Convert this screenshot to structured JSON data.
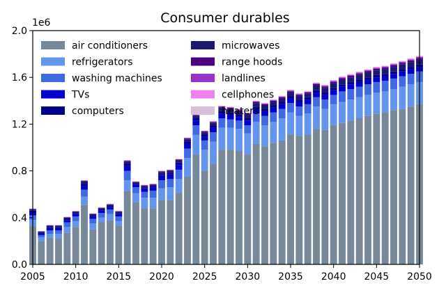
{
  "chart_data": {
    "type": "bar",
    "stacked": true,
    "title": "Consumer durables",
    "xlabel": "",
    "ylabel": "",
    "y_offset_label": "1e6",
    "xlim": [
      2005,
      2050
    ],
    "ylim": [
      0,
      2000000
    ],
    "x_ticks": [
      2005,
      2010,
      2015,
      2020,
      2025,
      2030,
      2035,
      2040,
      2045,
      2050
    ],
    "x_tick_labels": [
      "2005",
      "2010",
      "2015",
      "2020",
      "2025",
      "2030",
      "2035",
      "2040",
      "2045",
      "2050"
    ],
    "y_ticks": [
      0,
      400000,
      800000,
      1200000,
      1600000,
      2000000
    ],
    "y_tick_labels": [
      "0.0",
      "0.4",
      "0.8",
      "1.2",
      "1.6",
      "2.0"
    ],
    "grid": false,
    "legend_position": "top-left",
    "legend_columns": 2,
    "years": [
      2005,
      2006,
      2007,
      2008,
      2009,
      2010,
      2011,
      2012,
      2013,
      2014,
      2015,
      2016,
      2017,
      2018,
      2019,
      2020,
      2021,
      2022,
      2023,
      2024,
      2025,
      2026,
      2027,
      2028,
      2029,
      2030,
      2031,
      2032,
      2033,
      2034,
      2035,
      2036,
      2037,
      2038,
      2039,
      2040,
      2041,
      2042,
      2043,
      2044,
      2045,
      2046,
      2047,
      2048,
      2049,
      2050
    ],
    "series": [
      {
        "name": "air conditioners",
        "color": "#778899",
        "values": [
          330000,
          200000,
          230000,
          220000,
          270000,
          320000,
          510000,
          300000,
          360000,
          380000,
          330000,
          630000,
          530000,
          480000,
          480000,
          550000,
          550000,
          610000,
          750000,
          940000,
          800000,
          860000,
          980000,
          980000,
          970000,
          940000,
          1030000,
          1010000,
          1040000,
          1060000,
          1110000,
          1100000,
          1110000,
          1160000,
          1150000,
          1190000,
          1210000,
          1230000,
          1250000,
          1270000,
          1290000,
          1300000,
          1320000,
          1330000,
          1350000,
          1370000
        ]
      },
      {
        "name": "refrigerators",
        "color": "#6495ED",
        "values": [
          50000,
          30000,
          30000,
          40000,
          50000,
          50000,
          70000,
          50000,
          40000,
          50000,
          40000,
          90000,
          80000,
          90000,
          90000,
          100000,
          110000,
          120000,
          160000,
          170000,
          180000,
          190000,
          190000,
          190000,
          190000,
          180000,
          190000,
          180000,
          180000,
          190000,
          190000,
          170000,
          180000,
          190000,
          180000,
          180000,
          180000,
          180000,
          180000,
          180000,
          180000,
          180000,
          180000,
          190000,
          190000,
          190000
        ]
      },
      {
        "name": "washing machines",
        "color": "#4169E1",
        "values": [
          40000,
          20000,
          30000,
          30000,
          40000,
          40000,
          60000,
          40000,
          40000,
          40000,
          40000,
          80000,
          50000,
          50000,
          60000,
          70000,
          70000,
          80000,
          80000,
          80000,
          80000,
          80000,
          80000,
          70000,
          70000,
          70000,
          70000,
          80000,
          80000,
          80000,
          80000,
          80000,
          80000,
          80000,
          80000,
          80000,
          90000,
          90000,
          90000,
          90000,
          90000,
          90000,
          90000,
          90000,
          90000,
          90000
        ]
      },
      {
        "name": "TVs",
        "color": "#0000CD",
        "values": [
          20000,
          10000,
          20000,
          20000,
          20000,
          20000,
          30000,
          20000,
          20000,
          20000,
          20000,
          40000,
          20000,
          30000,
          30000,
          40000,
          40000,
          40000,
          40000,
          40000,
          30000,
          40000,
          40000,
          40000,
          30000,
          40000,
          40000,
          40000,
          40000,
          40000,
          40000,
          40000,
          40000,
          40000,
          40000,
          40000,
          40000,
          40000,
          40000,
          40000,
          40000,
          40000,
          40000,
          40000,
          40000,
          40000
        ]
      },
      {
        "name": "computers",
        "color": "#00008B",
        "values": [
          20000,
          10000,
          10000,
          10000,
          10000,
          10000,
          20000,
          10000,
          10000,
          10000,
          10000,
          20000,
          10000,
          10000,
          10000,
          10000,
          10000,
          20000,
          20000,
          20000,
          20000,
          20000,
          20000,
          20000,
          20000,
          20000,
          20000,
          20000,
          20000,
          20000,
          20000,
          20000,
          20000,
          20000,
          20000,
          20000,
          20000,
          20000,
          20000,
          20000,
          20000,
          20000,
          20000,
          20000,
          20000,
          20000
        ]
      },
      {
        "name": "microwaves",
        "color": "#191970",
        "values": [
          10000,
          10000,
          10000,
          10000,
          10000,
          10000,
          20000,
          10000,
          10000,
          10000,
          10000,
          20000,
          10000,
          10000,
          10000,
          20000,
          20000,
          20000,
          20000,
          20000,
          20000,
          20000,
          30000,
          30000,
          30000,
          30000,
          30000,
          30000,
          30000,
          30000,
          30000,
          30000,
          30000,
          40000,
          40000,
          40000,
          40000,
          40000,
          40000,
          40000,
          40000,
          40000,
          40000,
          40000,
          40000,
          40000
        ]
      },
      {
        "name": "range hoods",
        "color": "#4B0082",
        "values": [
          3000,
          2000,
          3000,
          3000,
          3000,
          3000,
          5000,
          3000,
          4000,
          4000,
          4000,
          6000,
          5000,
          5000,
          5000,
          6000,
          6000,
          6000,
          7000,
          8000,
          7000,
          8000,
          9000,
          9000,
          9000,
          9000,
          10000,
          10000,
          10000,
          10000,
          11000,
          11000,
          11000,
          12000,
          12000,
          12000,
          13000,
          13000,
          13000,
          14000,
          14000,
          14000,
          15000,
          15000,
          15000,
          16000
        ]
      },
      {
        "name": "landlines",
        "color": "#9932CC",
        "values": [
          2000,
          1000,
          2000,
          2000,
          2000,
          2000,
          3000,
          2000,
          2000,
          2000,
          2000,
          3000,
          3000,
          3000,
          3000,
          3000,
          3000,
          3000,
          4000,
          4000,
          4000,
          4000,
          4000,
          5000,
          5000,
          5000,
          5000,
          5000,
          6000,
          6000,
          6000,
          6000,
          6000,
          7000,
          7000,
          7000,
          7000,
          7000,
          8000,
          8000,
          8000,
          8000,
          8000,
          8000,
          9000,
          9000
        ]
      },
      {
        "name": "cellphones",
        "color": "#EE82EE",
        "values": [
          2000,
          1000,
          1000,
          1000,
          2000,
          2000,
          2000,
          1000,
          2000,
          2000,
          2000,
          2000,
          2000,
          2000,
          2000,
          2000,
          2000,
          2000,
          3000,
          3000,
          3000,
          3000,
          3000,
          3000,
          3000,
          3000,
          3000,
          4000,
          4000,
          4000,
          4000,
          4000,
          4000,
          4000,
          4000,
          5000,
          5000,
          5000,
          5000,
          5000,
          5000,
          5000,
          5000,
          5000,
          6000,
          6000
        ]
      },
      {
        "name": "heaters",
        "color": "#D8BFD8",
        "values": [
          1000,
          1000,
          1000,
          1000,
          1000,
          1000,
          1000,
          1000,
          1000,
          1000,
          1000,
          2000,
          1000,
          1000,
          1000,
          1000,
          1000,
          2000,
          2000,
          2000,
          2000,
          2000,
          2000,
          2000,
          2000,
          2000,
          2000,
          2000,
          2000,
          2000,
          3000,
          3000,
          3000,
          3000,
          3000,
          3000,
          3000,
          3000,
          3000,
          3000,
          3000,
          3000,
          3000,
          3000,
          3000,
          4000
        ]
      }
    ]
  }
}
